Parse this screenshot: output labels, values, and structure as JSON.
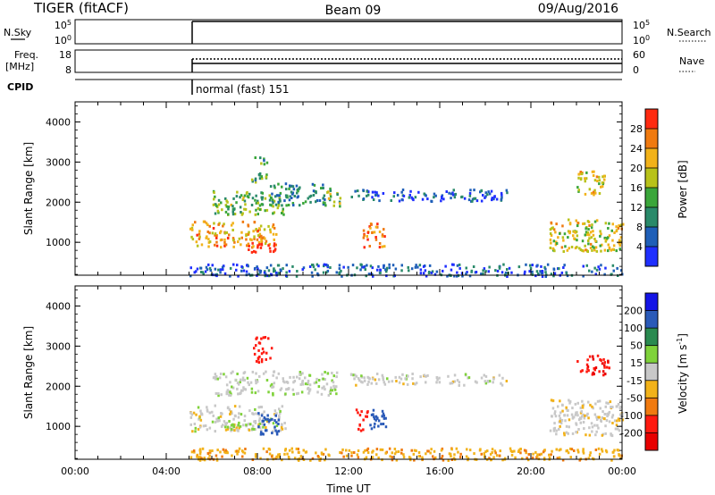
{
  "header": {
    "station": "TIGER (fitACF)",
    "beam": "Beam 09",
    "date": "09/Aug/2016"
  },
  "strips": {
    "nsky": {
      "label": "N.Sky",
      "tick_top": "10^5",
      "tick_bottom": "10^0",
      "right_tick_top": "10^5",
      "right_tick_bottom": "10^0",
      "right_label": "N.Search"
    },
    "freq": {
      "label_line1": "Freq.",
      "label_line2": "[MHz]",
      "tick_top": "18",
      "tick_bottom": "8",
      "right_tick_top": "60",
      "right_tick_bottom": "0",
      "right_label": "Nave"
    },
    "cpid": {
      "label": "CPID",
      "mode": "normal (fast) 151"
    }
  },
  "chart_data": [
    {
      "type": "heatmap",
      "quantity": "Power",
      "ylabel": "Slant Range [km]",
      "ylim": [
        180,
        4500
      ],
      "xlim": [
        0,
        24
      ],
      "yticks": [
        "1000",
        "2000",
        "3000",
        "4000"
      ],
      "colorbar_label": "Power [dB]",
      "colorbar_ticks": [
        "4",
        "8",
        "12",
        "16",
        "20",
        "24",
        "28"
      ],
      "colorbar_range": [
        0,
        30
      ],
      "colors": [
        "#1f2fff",
        "#1f5fb8",
        "#2a8a6a",
        "#3aa63a",
        "#b8c21a",
        "#f2b21a",
        "#f07a10",
        "#ff2a10"
      ],
      "regions": [
        {
          "t0": 5.0,
          "t1": 8.8,
          "r0": 900,
          "r1": 1550,
          "v": 22
        },
        {
          "t0": 7.5,
          "t1": 8.8,
          "r0": 780,
          "r1": 1000,
          "v": 29
        },
        {
          "t0": 6.0,
          "t1": 9.2,
          "r0": 1700,
          "r1": 2300,
          "v": 14
        },
        {
          "t0": 7.7,
          "t1": 8.4,
          "r0": 2500,
          "r1": 3200,
          "v": 12
        },
        {
          "t0": 8.5,
          "t1": 11.2,
          "r0": 1950,
          "r1": 2500,
          "v": 9
        },
        {
          "t0": 10.8,
          "t1": 11.6,
          "r0": 1900,
          "r1": 2300,
          "v": 15
        },
        {
          "t0": 12.6,
          "t1": 13.6,
          "r0": 900,
          "r1": 1500,
          "v": 24
        },
        {
          "t0": 12.0,
          "t1": 19.0,
          "r0": 2050,
          "r1": 2350,
          "v": 5
        },
        {
          "t0": 20.8,
          "t1": 24.0,
          "r0": 800,
          "r1": 1600,
          "v": 18
        },
        {
          "t0": 22.0,
          "t1": 23.2,
          "r0": 2200,
          "r1": 2800,
          "v": 19
        },
        {
          "t0": 5.0,
          "t1": 24.0,
          "r0": 180,
          "r1": 480,
          "v": 6
        }
      ]
    },
    {
      "type": "heatmap",
      "quantity": "Velocity",
      "ylabel": "Slant Range [km]",
      "ylim": [
        180,
        4500
      ],
      "xlim": [
        0,
        24
      ],
      "xlabel": "Time UT",
      "yticks": [
        "1000",
        "2000",
        "3000",
        "4000"
      ],
      "xticks": [
        "00:00",
        "04:00",
        "08:00",
        "12:00",
        "16:00",
        "20:00",
        "00:00"
      ],
      "colorbar_label": "Velocity [m s",
      "colorbar_label_exp": "-1",
      "colorbar_label_end": "]",
      "colorbar_ticks": [
        "200",
        "100",
        "50",
        "15",
        "-15",
        "-50",
        "-100",
        "-200"
      ],
      "colors": [
        "#1414e6",
        "#2a5ab8",
        "#2a8a50",
        "#7fd23a",
        "#c8c8c8",
        "#f2b21a",
        "#f07a10",
        "#ff1a10",
        "#e80000"
      ],
      "regions": [
        {
          "t0": 5.0,
          "t1": 9.2,
          "r0": 900,
          "r1": 1550,
          "v": 0
        },
        {
          "t0": 6.5,
          "t1": 8.4,
          "r0": 950,
          "r1": 1100,
          "v": 30
        },
        {
          "t0": 8.0,
          "t1": 8.9,
          "r0": 800,
          "r1": 1400,
          "v": 180
        },
        {
          "t0": 7.8,
          "t1": 8.6,
          "r0": 2600,
          "r1": 3300,
          "v": -120
        },
        {
          "t0": 6.0,
          "t1": 11.5,
          "r0": 1800,
          "r1": 2400,
          "v": 5
        },
        {
          "t0": 12.3,
          "t1": 12.9,
          "r0": 900,
          "r1": 1450,
          "v": -150
        },
        {
          "t0": 12.9,
          "t1": 13.6,
          "r0": 900,
          "r1": 1450,
          "v": 180
        },
        {
          "t0": 12.0,
          "t1": 19.0,
          "r0": 2050,
          "r1": 2350,
          "v": 0
        },
        {
          "t0": 20.8,
          "t1": 24.0,
          "r0": 800,
          "r1": 1700,
          "v": -5
        },
        {
          "t0": 22.0,
          "t1": 23.4,
          "r0": 2300,
          "r1": 2800,
          "v": -190
        },
        {
          "t0": 5.0,
          "t1": 24.0,
          "r0": 180,
          "r1": 480,
          "v": -40
        }
      ]
    }
  ]
}
